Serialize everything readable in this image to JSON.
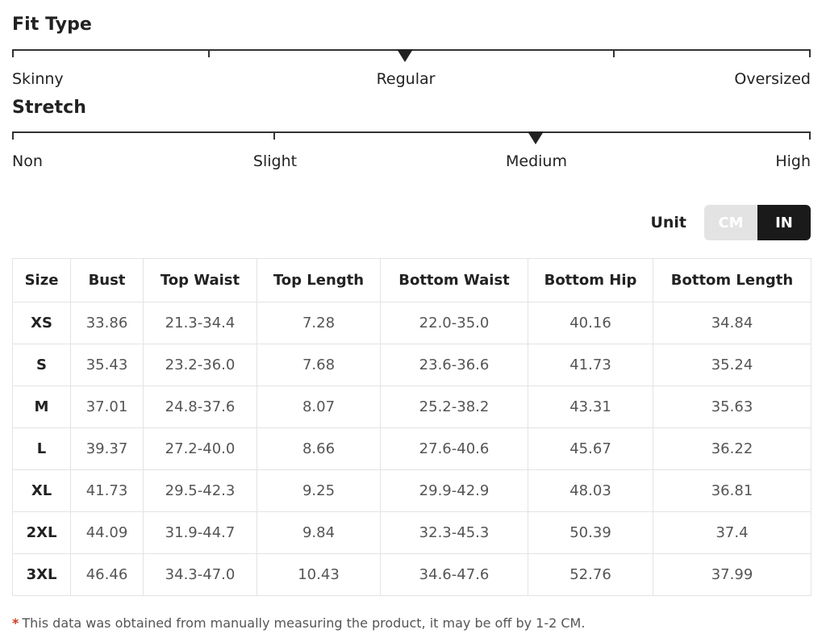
{
  "fit_type": {
    "title": "Fit Type",
    "labels": [
      "Skinny",
      "Regular",
      "Oversized"
    ],
    "selected": "Regular"
  },
  "stretch": {
    "title": "Stretch",
    "labels": [
      "Non",
      "Slight",
      "Medium",
      "High"
    ],
    "selected": "Medium"
  },
  "unit": {
    "label": "Unit",
    "options": [
      "CM",
      "IN"
    ],
    "selected": "IN"
  },
  "table": {
    "headers": [
      "Size",
      "Bust",
      "Top Waist",
      "Top Length",
      "Bottom Waist",
      "Bottom Hip",
      "Bottom Length"
    ],
    "rows": [
      [
        "XS",
        "33.86",
        "21.3-34.4",
        "7.28",
        "22.0-35.0",
        "40.16",
        "34.84"
      ],
      [
        "S",
        "35.43",
        "23.2-36.0",
        "7.68",
        "23.6-36.6",
        "41.73",
        "35.24"
      ],
      [
        "M",
        "37.01",
        "24.8-37.6",
        "8.07",
        "25.2-38.2",
        "43.31",
        "35.63"
      ],
      [
        "L",
        "39.37",
        "27.2-40.0",
        "8.66",
        "27.6-40.6",
        "45.67",
        "36.22"
      ],
      [
        "XL",
        "41.73",
        "29.5-42.3",
        "9.25",
        "29.9-42.9",
        "48.03",
        "36.81"
      ],
      [
        "2XL",
        "44.09",
        "31.9-44.7",
        "9.84",
        "32.3-45.3",
        "50.39",
        "37.4"
      ],
      [
        "3XL",
        "46.46",
        "34.3-47.0",
        "10.43",
        "34.6-47.6",
        "52.76",
        "37.99"
      ]
    ]
  },
  "footnote": {
    "asterisk": "*",
    "text": "This data was obtained from manually measuring the product, it may be off by 1-2 CM."
  }
}
